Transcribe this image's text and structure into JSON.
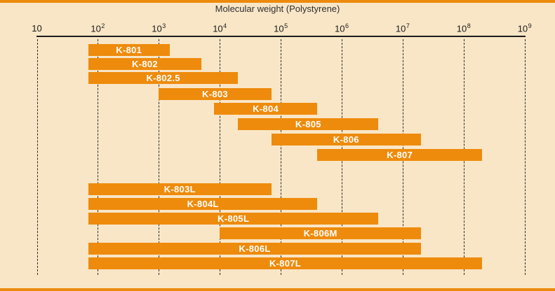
{
  "page": {
    "background_color": "#F9E6C7",
    "border_strip_color": "#EC8A0D"
  },
  "chart_data": {
    "type": "bar",
    "subtype": "horizontal-range-bars-log-x",
    "title": "Molecular weight (Polystyrene)",
    "bar_color": "#EE8B0C",
    "bar_label_color": "#FFFFFF",
    "x_axis": {
      "scale": "log10",
      "range": [
        10,
        1000000000
      ],
      "gridlines": "vertical-dashed",
      "ticks": [
        {
          "value": 10,
          "base": "10",
          "sup": ""
        },
        {
          "value": 100,
          "base": "10",
          "sup": "2"
        },
        {
          "value": 1000,
          "base": "10",
          "sup": "3"
        },
        {
          "value": 10000,
          "base": "10",
          "sup": "4"
        },
        {
          "value": 100000,
          "base": "10",
          "sup": "5"
        },
        {
          "value": 1000000,
          "base": "10",
          "sup": "6"
        },
        {
          "value": 10000000,
          "base": "10",
          "sup": "7"
        },
        {
          "value": 100000000,
          "base": "10",
          "sup": "8"
        },
        {
          "value": 1000000000,
          "base": "10",
          "sup": "9"
        }
      ]
    },
    "groups": [
      {
        "name": "group_1",
        "rows": [
          {
            "label": "K-801",
            "mw_min": 70,
            "mw_max": 1500
          },
          {
            "label": "K-802",
            "mw_min": 70,
            "mw_max": 5000
          },
          {
            "label": "K-802.5",
            "mw_min": 70,
            "mw_max": 20000
          },
          {
            "label": "K-803",
            "mw_min": 1000,
            "mw_max": 70000
          },
          {
            "label": "K-804",
            "mw_min": 8000,
            "mw_max": 400000
          },
          {
            "label": "K-805",
            "mw_min": 20000,
            "mw_max": 4000000
          },
          {
            "label": "K-806",
            "mw_min": 70000,
            "mw_max": 20000000
          },
          {
            "label": "K-807",
            "mw_min": 400000,
            "mw_max": 200000000
          }
        ]
      },
      {
        "name": "group_2",
        "rows": [
          {
            "label": "K-803L",
            "mw_min": 70,
            "mw_max": 70000
          },
          {
            "label": "K-804L",
            "mw_min": 70,
            "mw_max": 400000
          },
          {
            "label": "K-805L",
            "mw_min": 70,
            "mw_max": 4000000
          },
          {
            "label": "K-806M",
            "mw_min": 10000,
            "mw_max": 20000000
          },
          {
            "label": "K-806L",
            "mw_min": 70,
            "mw_max": 20000000
          },
          {
            "label": "K-807L",
            "mw_min": 70,
            "mw_max": 200000000
          }
        ]
      }
    ]
  }
}
